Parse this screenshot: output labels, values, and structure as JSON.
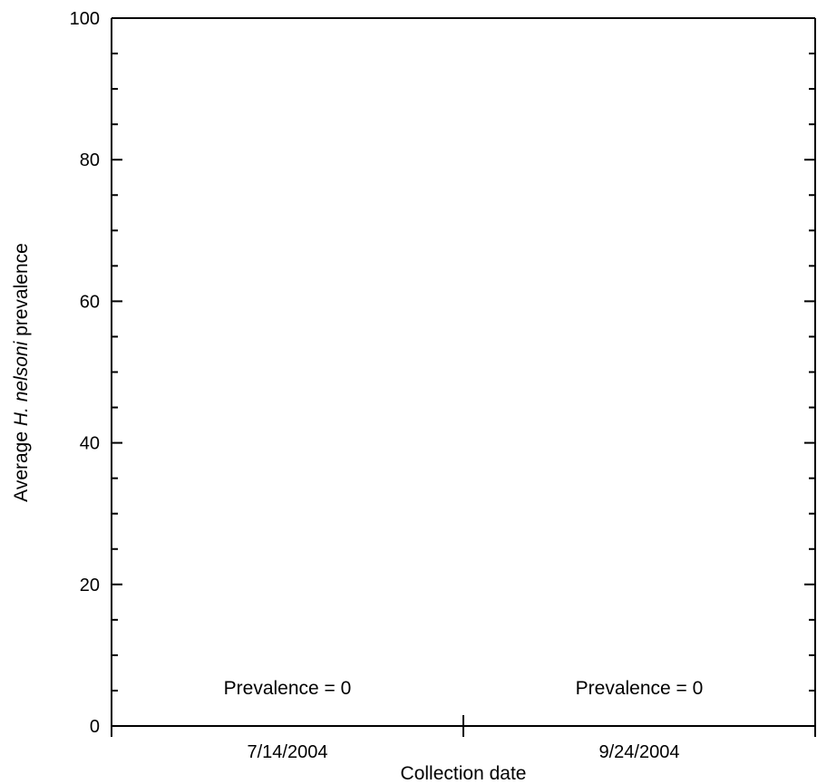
{
  "chart_data": {
    "type": "bar",
    "categories": [
      "7/14/2004",
      "9/24/2004"
    ],
    "values": [
      0,
      0
    ],
    "xlabel": "Collection date",
    "ylabel": {
      "before": "Average ",
      "italic": "H. nelsoni",
      "after": " prevalence"
    },
    "ylim": [
      0,
      100
    ],
    "yticks": [
      0,
      20,
      40,
      60,
      80,
      100
    ],
    "ytick_labels": [
      "0",
      "20",
      "40",
      "60",
      "80",
      "100"
    ],
    "y_minor_step": 5,
    "annotations": [
      "Prevalence = 0",
      "Prevalence = 0"
    ],
    "grid": false,
    "legend": "none"
  }
}
